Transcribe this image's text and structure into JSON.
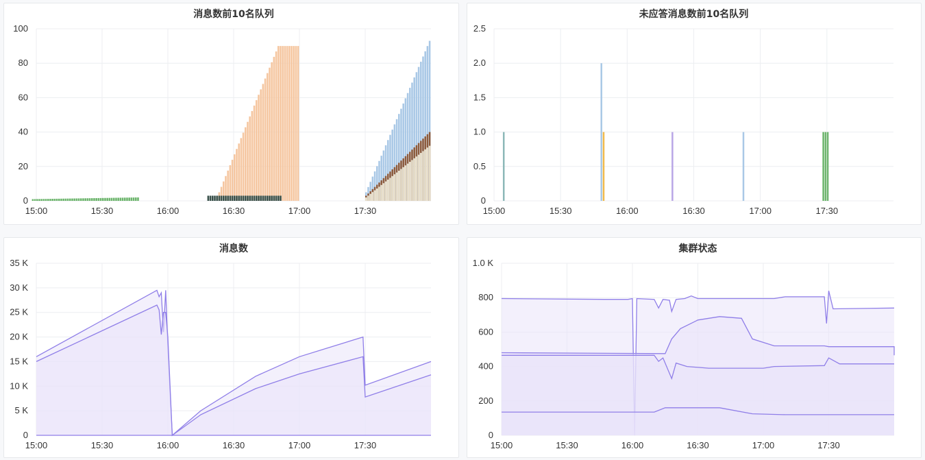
{
  "colors": {
    "orange": "#f5c6a0",
    "blue": "#a9c8e6",
    "brown": "#8b5a3c",
    "cream": "#e6ddc8",
    "dark": "#39504a",
    "green": "#6db56d",
    "violet": "#b9a6e6",
    "gold": "#f0b94a",
    "teal": "#8cb8b8",
    "line": "#8f7ee8",
    "fill": "#e9e4fa"
  },
  "chart_data": [
    {
      "type": "bar",
      "title": "消息数前10名队列",
      "x_ticks": [
        "15:00",
        "15:30",
        "16:00",
        "16:30",
        "17:00",
        "17:30"
      ],
      "x_range": [
        "15:00",
        "18:00"
      ],
      "ylim": [
        0,
        100
      ],
      "y_ticks": [
        "0",
        "20",
        "40",
        "60",
        "80",
        "100"
      ],
      "grid": true,
      "series": [
        {
          "color": "orange",
          "points": [
            [
              "16:23",
              5
            ],
            [
              "16:59",
              90
            ]
          ],
          "plateau": [
            [
              "16:50",
              "16:59",
              90
            ]
          ]
        },
        {
          "color": "dark",
          "points": [
            [
              "16:18",
              3
            ],
            [
              "16:51",
              3
            ]
          ]
        },
        {
          "color": "blue",
          "points": [
            [
              "17:30",
              5
            ],
            [
              "17:59",
              93
            ]
          ]
        },
        {
          "color": "brown",
          "points": [
            [
              "17:30",
              3
            ],
            [
              "17:59",
              40
            ]
          ]
        },
        {
          "color": "cream",
          "points": [
            [
              "17:30",
              2
            ],
            [
              "17:59",
              32
            ]
          ]
        },
        {
          "color": "green",
          "points": [
            [
              "14:58",
              1
            ],
            [
              "15:46",
              2
            ]
          ]
        }
      ]
    },
    {
      "type": "bar",
      "title": "未应答消息数前10名队列",
      "x_ticks": [
        "15:00",
        "15:30",
        "16:00",
        "16:30",
        "17:00",
        "17:30"
      ],
      "x_range": [
        "15:00",
        "18:00"
      ],
      "ylim": [
        0,
        2.5
      ],
      "y_ticks": [
        "0",
        "0.5",
        "1.0",
        "1.5",
        "2.0",
        "2.5"
      ],
      "grid": true,
      "bars": [
        {
          "x": "15:04",
          "value": 1,
          "color": "teal"
        },
        {
          "x": "15:48",
          "value": 2,
          "color": "blue"
        },
        {
          "x": "15:49",
          "value": 1,
          "color": "gold"
        },
        {
          "x": "16:20",
          "value": 1,
          "color": "violet"
        },
        {
          "x": "16:52",
          "value": 1,
          "color": "blue"
        },
        {
          "x": "17:28",
          "value": 1,
          "color": "green"
        },
        {
          "x": "17:29",
          "value": 1,
          "color": "green"
        },
        {
          "x": "17:30",
          "value": 1,
          "color": "green"
        }
      ]
    },
    {
      "type": "area",
      "title": "消息数",
      "x_ticks": [
        "15:00",
        "15:30",
        "16:00",
        "16:30",
        "17:00",
        "17:30"
      ],
      "x_range": [
        "15:00",
        "18:00"
      ],
      "ylim": [
        0,
        35000
      ],
      "y_ticks": [
        "0",
        "5 K",
        "10 K",
        "15 K",
        "20 K",
        "25 K",
        "30 K",
        "35 K"
      ],
      "grid": true,
      "series": [
        {
          "points": [
            [
              "15:00",
              16000
            ],
            [
              "15:55",
              29500
            ],
            [
              "15:56",
              28200
            ],
            [
              "15:57",
              29000
            ],
            [
              "15:58",
              21000
            ],
            [
              "15:59",
              29500
            ],
            [
              "16:00",
              18000
            ],
            [
              "16:02",
              0
            ],
            [
              "16:15",
              5000
            ],
            [
              "16:40",
              12000
            ],
            [
              "17:00",
              16000
            ],
            [
              "17:29",
              20000
            ],
            [
              "17:30",
              10200
            ],
            [
              "18:00",
              15000
            ]
          ]
        },
        {
          "points": [
            [
              "15:00",
              15000
            ],
            [
              "15:55",
              26500
            ],
            [
              "15:56",
              25500
            ],
            [
              "15:57",
              20500
            ],
            [
              "15:58",
              25000
            ],
            [
              "15:59",
              25000
            ],
            [
              "16:00",
              20000
            ],
            [
              "16:02",
              0
            ],
            [
              "16:15",
              4200
            ],
            [
              "16:40",
              9500
            ],
            [
              "17:00",
              12500
            ],
            [
              "17:29",
              16000
            ],
            [
              "17:30",
              7800
            ],
            [
              "18:00",
              12300
            ]
          ]
        },
        {
          "points": [
            [
              "15:00",
              0
            ],
            [
              "18:00",
              0
            ]
          ]
        }
      ]
    },
    {
      "type": "area",
      "title": "集群状态",
      "x_ticks": [
        "15:00",
        "15:30",
        "16:00",
        "16:30",
        "17:00",
        "17:30"
      ],
      "x_range": [
        "15:00",
        "18:00"
      ],
      "ylim": [
        0,
        1000
      ],
      "y_ticks": [
        "0",
        "200",
        "400",
        "600",
        "800",
        "1.0 K"
      ],
      "grid": true,
      "series": [
        {
          "points": [
            [
              "15:00",
              795
            ],
            [
              "15:47",
              790
            ],
            [
              "15:58",
              790
            ],
            [
              "16:00",
              795
            ],
            [
              "16:01",
              0
            ],
            [
              "16:02",
              795
            ],
            [
              "16:10",
              790
            ],
            [
              "16:12",
              740
            ],
            [
              "16:14",
              790
            ],
            [
              "16:17",
              785
            ],
            [
              "16:18",
              720
            ],
            [
              "16:20",
              790
            ],
            [
              "16:24",
              795
            ],
            [
              "16:27",
              810
            ],
            [
              "16:30",
              795
            ],
            [
              "17:05",
              795
            ],
            [
              "17:10",
              805
            ],
            [
              "17:28",
              805
            ],
            [
              "17:29",
              650
            ],
            [
              "17:30",
              840
            ],
            [
              "17:32",
              735
            ],
            [
              "18:00",
              740
            ]
          ]
        },
        {
          "points": [
            [
              "15:00",
              480
            ],
            [
              "16:15",
              475
            ],
            [
              "16:18",
              560
            ],
            [
              "16:22",
              620
            ],
            [
              "16:30",
              670
            ],
            [
              "16:40",
              690
            ],
            [
              "16:50",
              680
            ],
            [
              "16:55",
              560
            ],
            [
              "17:05",
              520
            ],
            [
              "17:28",
              520
            ],
            [
              "17:30",
              515
            ],
            [
              "18:00",
              515
            ],
            [
              "18:00",
              465
            ]
          ]
        },
        {
          "points": [
            [
              "15:00",
              465
            ],
            [
              "16:10",
              465
            ],
            [
              "16:12",
              430
            ],
            [
              "16:14",
              450
            ],
            [
              "16:18",
              330
            ],
            [
              "16:20",
              420
            ],
            [
              "16:25",
              400
            ],
            [
              "16:35",
              390
            ],
            [
              "17:00",
              390
            ],
            [
              "17:05",
              400
            ],
            [
              "17:28",
              405
            ],
            [
              "17:30",
              450
            ],
            [
              "17:35",
              415
            ],
            [
              "18:00",
              415
            ]
          ]
        },
        {
          "points": [
            [
              "15:00",
              135
            ],
            [
              "16:10",
              135
            ],
            [
              "16:15",
              160
            ],
            [
              "16:40",
              160
            ],
            [
              "16:55",
              125
            ],
            [
              "17:10",
              120
            ],
            [
              "18:00",
              120
            ]
          ]
        }
      ]
    }
  ]
}
